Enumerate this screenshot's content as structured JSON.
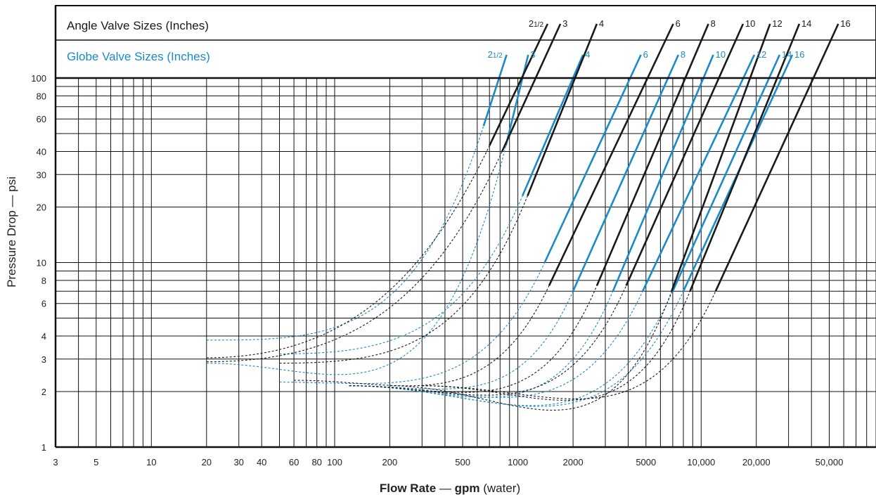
{
  "chart_data": {
    "type": "line",
    "xscale": "log",
    "yscale": "log",
    "xlim": [
      3,
      90000
    ],
    "ylim": [
      1,
      100
    ],
    "xticks": [
      {
        "v": 3,
        "label": "3"
      },
      {
        "v": 5,
        "label": "5"
      },
      {
        "v": 10,
        "label": "10"
      },
      {
        "v": 20,
        "label": "20"
      },
      {
        "v": 30,
        "label": "30"
      },
      {
        "v": 40,
        "label": "40"
      },
      {
        "v": 60,
        "label": "60"
      },
      {
        "v": 80,
        "label": "80"
      },
      {
        "v": 100,
        "label": "100"
      },
      {
        "v": 200,
        "label": "200"
      },
      {
        "v": 500,
        "label": "500"
      },
      {
        "v": 1000,
        "label": "1000"
      },
      {
        "v": 2000,
        "label": "2000"
      },
      {
        "v": 5000,
        "label": "5000"
      },
      {
        "v": 10000,
        "label": "10,000"
      },
      {
        "v": 20000,
        "label": "20,000"
      },
      {
        "v": 50000,
        "label": "50,000"
      }
    ],
    "yticks": [
      {
        "v": 1,
        "label": "1"
      },
      {
        "v": 2,
        "label": "2"
      },
      {
        "v": 3,
        "label": "3"
      },
      {
        "v": 4,
        "label": "4"
      },
      {
        "v": 6,
        "label": "6"
      },
      {
        "v": 8,
        "label": "8"
      },
      {
        "v": 10,
        "label": "10"
      },
      {
        "v": 20,
        "label": "20"
      },
      {
        "v": 30,
        "label": "30"
      },
      {
        "v": 40,
        "label": "40"
      },
      {
        "v": 60,
        "label": "60"
      },
      {
        "v": 80,
        "label": "80"
      },
      {
        "v": 100,
        "label": "100"
      }
    ],
    "x_gridlines": [
      4,
      5,
      6,
      7,
      8,
      9,
      10,
      20,
      30,
      40,
      50,
      60,
      70,
      80,
      90,
      100,
      200,
      300,
      400,
      500,
      600,
      700,
      800,
      900,
      1000,
      2000,
      3000,
      4000,
      5000,
      6000,
      7000,
      8000,
      9000,
      10000,
      20000,
      30000,
      40000,
      50000,
      60000,
      70000,
      80000,
      90000
    ],
    "y_gridlines": [
      2,
      3,
      4,
      5,
      6,
      7,
      8,
      9,
      10,
      20,
      30,
      40,
      50,
      60,
      70,
      80,
      90
    ],
    "xlabel_bold": "Flow Rate",
    "xlabel_dash": " — ",
    "xlabel_bold2": "gpm",
    "xlabel_rest": " (water)",
    "ylabel": "Pressure Drop — psi",
    "header_angle": "Angle Valve Sizes (Inches)",
    "header_globe": "Globe Valve Sizes (Inches)",
    "colors": {
      "angle": "#1a1a1a",
      "globe": "#1a8ac8"
    },
    "series": [
      {
        "name": "21/2",
        "group": "globe",
        "label_whole": "2",
        "label_frac": "1/2",
        "curve_start": [
          20,
          3.8
        ],
        "knee": [
          650,
          55
        ],
        "end": [
          790,
          100
        ]
      },
      {
        "name": "3",
        "group": "globe",
        "label": "3",
        "curve_start": [
          20,
          2.85
        ],
        "knee": [
          860,
          43
        ],
        "end": [
          1060,
          100
        ]
      },
      {
        "name": "4",
        "group": "globe",
        "label": "4",
        "curve_start": [
          50,
          3.2
        ],
        "knee": [
          1060,
          23
        ],
        "end": [
          2000,
          100
        ]
      },
      {
        "name": "6",
        "group": "globe",
        "label": "6",
        "curve_start": [
          50,
          2.25
        ],
        "knee": [
          1400,
          10
        ],
        "end": [
          4100,
          100
        ]
      },
      {
        "name": "8",
        "group": "globe",
        "label": "8",
        "curve_start": [
          120,
          2.15
        ],
        "knee": [
          2000,
          7
        ],
        "end": [
          6600,
          100
        ]
      },
      {
        "name": "10",
        "group": "globe",
        "label": "10",
        "curve_start": [
          120,
          2.15
        ],
        "knee": [
          3300,
          7
        ],
        "end": [
          10300,
          100
        ]
      },
      {
        "name": "12",
        "group": "globe",
        "label": "12",
        "curve_start": [
          120,
          2.15
        ],
        "knee": [
          4800,
          7
        ],
        "end": [
          17000,
          100
        ]
      },
      {
        "name": "14",
        "group": "globe",
        "label": "14",
        "curve_start": [
          120,
          2.15
        ],
        "knee": [
          7000,
          7
        ],
        "end": [
          23500,
          100
        ]
      },
      {
        "name": "16",
        "group": "globe",
        "label": "16",
        "curve_start": [
          120,
          2.15
        ],
        "knee": [
          8000,
          7
        ],
        "end": [
          27500,
          100
        ]
      },
      {
        "name": "21/2",
        "group": "angle",
        "label_whole": "2",
        "label_frac": "1/2",
        "curve_start": [
          20,
          3.05
        ],
        "knee": [
          700,
          43
        ],
        "end": [
          1050,
          100
        ]
      },
      {
        "name": "3",
        "group": "angle",
        "label": "3",
        "curve_start": [
          20,
          2.9
        ],
        "knee": [
          820,
          40
        ],
        "end": [
          1250,
          100
        ]
      },
      {
        "name": "4",
        "group": "angle",
        "label": "4",
        "curve_start": [
          50,
          2.85
        ],
        "knee": [
          1130,
          23
        ],
        "end": [
          2050,
          100
        ]
      },
      {
        "name": "6",
        "group": "angle",
        "label": "6",
        "curve_start": [
          60,
          2.3
        ],
        "knee": [
          1480,
          7.5
        ],
        "end": [
          5100,
          100
        ]
      },
      {
        "name": "8",
        "group": "angle",
        "label": "8",
        "curve_start": [
          120,
          2.15
        ],
        "knee": [
          2700,
          7.5
        ],
        "end": [
          8200,
          100
        ]
      },
      {
        "name": "10",
        "group": "angle",
        "label": "10",
        "curve_start": [
          120,
          2.15
        ],
        "knee": [
          3900,
          7.5
        ],
        "end": [
          12500,
          100
        ]
      },
      {
        "name": "12",
        "group": "angle",
        "label": "12",
        "curve_start": [
          200,
          2.15
        ],
        "knee": [
          6900,
          7
        ],
        "end": [
          18500,
          100
        ]
      },
      {
        "name": "14",
        "group": "angle",
        "label": "14",
        "curve_start": [
          300,
          2.15
        ],
        "knee": [
          8700,
          7
        ],
        "end": [
          26000,
          100
        ]
      },
      {
        "name": "16",
        "group": "angle",
        "label": "16",
        "curve_start": [
          300,
          2.15
        ],
        "knee": [
          12000,
          7
        ],
        "end": [
          41000,
          100
        ]
      }
    ]
  }
}
